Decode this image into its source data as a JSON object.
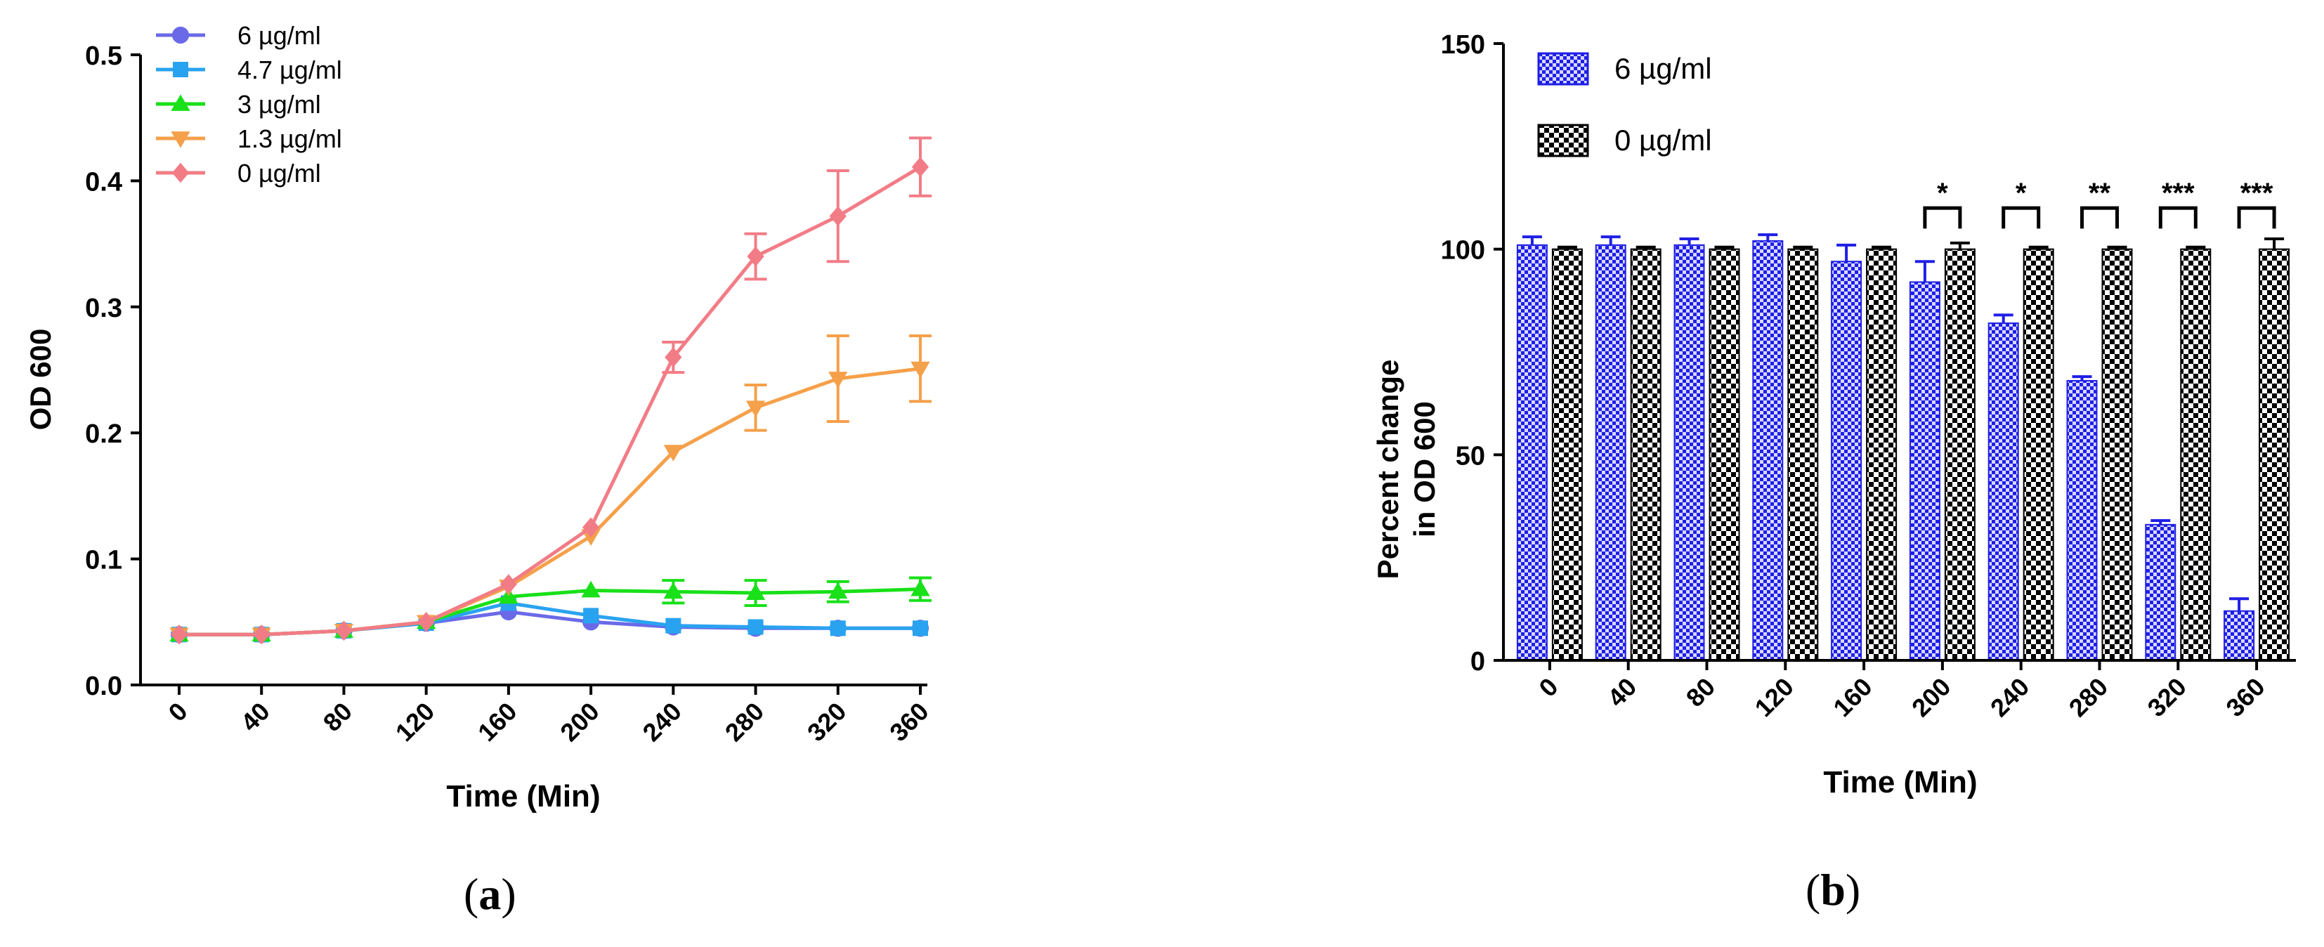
{
  "chart_data": [
    {
      "panel": "a",
      "type": "line",
      "title": "",
      "xlabel": "Time (Min)",
      "ylabel": "OD 600",
      "x": [
        0,
        40,
        80,
        120,
        160,
        200,
        240,
        280,
        320,
        360
      ],
      "x_tick_labels": [
        "0",
        "40",
        "80",
        "120",
        "160",
        "200",
        "240",
        "280",
        "320",
        "360"
      ],
      "ylim": [
        0,
        0.5
      ],
      "y_ticks": [
        0.0,
        0.1,
        0.2,
        0.3,
        0.4,
        0.5
      ],
      "y_tick_labels": [
        "0.0",
        "0.1",
        "0.2",
        "0.3",
        "0.4",
        "0.5"
      ],
      "grid": false,
      "legend_position": "top-left",
      "series": [
        {
          "name": "6 µg/ml",
          "color": "#6a6ae8",
          "marker": "circle",
          "values": [
            0.04,
            0.04,
            0.043,
            0.049,
            0.058,
            0.05,
            0.046,
            0.045,
            0.045,
            0.045
          ],
          "errors": [
            0.002,
            0.002,
            0.002,
            0.002,
            0.003,
            0.003,
            0.002,
            0.002,
            0.002,
            0.002
          ]
        },
        {
          "name": "4.7 µg/ml",
          "color": "#29a3f0",
          "marker": "square",
          "values": [
            0.04,
            0.04,
            0.043,
            0.049,
            0.065,
            0.055,
            0.047,
            0.046,
            0.045,
            0.045
          ],
          "errors": [
            0.002,
            0.002,
            0.002,
            0.002,
            0.003,
            0.003,
            0.003,
            0.003,
            0.003,
            0.003
          ]
        },
        {
          "name": "3 µg/ml",
          "color": "#19e019",
          "marker": "triangle-up",
          "values": [
            0.04,
            0.04,
            0.043,
            0.05,
            0.07,
            0.075,
            0.074,
            0.073,
            0.074,
            0.076
          ],
          "errors": [
            0.002,
            0.002,
            0.002,
            0.002,
            0.003,
            0.004,
            0.009,
            0.01,
            0.008,
            0.009
          ]
        },
        {
          "name": "1.3 µg/ml",
          "color": "#f5a04a",
          "marker": "triangle-down",
          "values": [
            0.04,
            0.04,
            0.043,
            0.05,
            0.078,
            0.118,
            0.185,
            0.22,
            0.243,
            0.251
          ],
          "errors": [
            0.002,
            0.002,
            0.002,
            0.002,
            0.003,
            0.004,
            0.004,
            0.018,
            0.034,
            0.026
          ]
        },
        {
          "name": "0 µg/ml",
          "color": "#f27c86",
          "marker": "diamond",
          "values": [
            0.04,
            0.04,
            0.043,
            0.05,
            0.08,
            0.125,
            0.26,
            0.34,
            0.372,
            0.411
          ],
          "errors": [
            0.002,
            0.002,
            0.002,
            0.002,
            0.003,
            0.004,
            0.012,
            0.018,
            0.036,
            0.023
          ]
        }
      ]
    },
    {
      "panel": "b",
      "type": "bar",
      "title": "",
      "xlabel": "Time (Min)",
      "ylabel_line1": "Percent change",
      "ylabel_line2": "in OD 600",
      "categories": [
        "0",
        "40",
        "80",
        "120",
        "160",
        "200",
        "240",
        "280",
        "320",
        "360"
      ],
      "ylim": [
        0,
        150
      ],
      "y_ticks": [
        0,
        50,
        100,
        150
      ],
      "y_tick_labels": [
        "0",
        "50",
        "100",
        "150"
      ],
      "grid": false,
      "legend_position": "top-left",
      "series": [
        {
          "name": "6 µg/ml",
          "color": "#1f1fe6",
          "pattern": "blue-crosshatch",
          "values": [
            101,
            101,
            101,
            102,
            97,
            92,
            82,
            68,
            33,
            12
          ],
          "errors": [
            2,
            2,
            1.5,
            1.5,
            4,
            5,
            2,
            1,
            1,
            3
          ]
        },
        {
          "name": "0 µg/ml",
          "color": "#000000",
          "pattern": "black-checker",
          "values": [
            100,
            100,
            100,
            100,
            100,
            100,
            100,
            100,
            100,
            100
          ],
          "errors": [
            0.5,
            0.5,
            0.5,
            0.5,
            0.5,
            1.5,
            0.5,
            0.5,
            0.5,
            2.5
          ]
        }
      ],
      "significance": [
        "",
        "",
        "",
        "",
        "",
        "*",
        "*",
        "**",
        "***",
        "***"
      ]
    }
  ],
  "panel_labels": {
    "a": "a",
    "b": "b"
  }
}
